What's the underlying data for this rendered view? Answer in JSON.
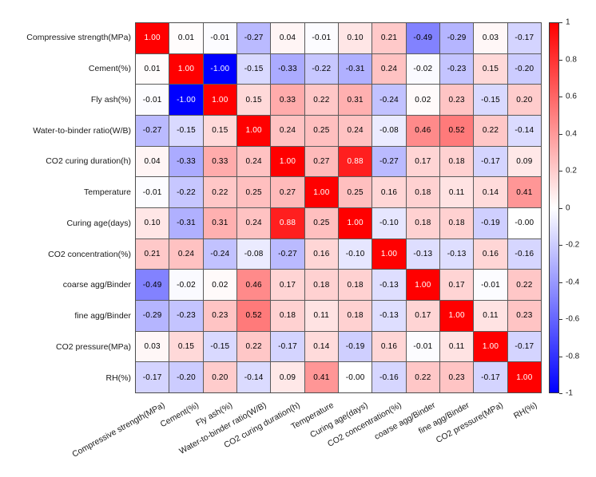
{
  "chart_data": {
    "type": "heatmap",
    "title": "",
    "xlabel": "",
    "ylabel": "",
    "x_categories": [
      "Compressive strength(MPa)",
      "Cement(%)",
      "Fly ash(%)",
      "Water-to-binder ratio(W/B)",
      "CO2 curing duration(h)",
      "Temperature",
      "Curing age(days)",
      "CO2 concentration(%)",
      "coarse agg/Binder",
      "fine agg/Binder",
      "CO2 pressure(MPa)",
      "RH(%)"
    ],
    "y_categories": [
      "Compressive strength(MPa)",
      "Cement(%)",
      "Fly ash(%)",
      "Water-to-binder ratio(W/B)",
      "CO2 curing duration(h)",
      "Temperature",
      "Curing age(days)",
      "CO2 concentration(%)",
      "coarse agg/Binder",
      "fine agg/Binder",
      "CO2 pressure(MPa)",
      "RH(%)"
    ],
    "matrix": [
      [
        "1.00",
        "0.01",
        "-0.01",
        "-0.27",
        "0.04",
        "-0.01",
        "0.10",
        "0.21",
        "-0.49",
        "-0.29",
        "0.03",
        "-0.17"
      ],
      [
        "0.01",
        "1.00",
        "-1.00",
        "-0.15",
        "-0.33",
        "-0.22",
        "-0.31",
        "0.24",
        "-0.02",
        "-0.23",
        "0.15",
        "-0.20"
      ],
      [
        "-0.01",
        "-1.00",
        "1.00",
        "0.15",
        "0.33",
        "0.22",
        "0.31",
        "-0.24",
        "0.02",
        "0.23",
        "-0.15",
        "0.20"
      ],
      [
        "-0.27",
        "-0.15",
        "0.15",
        "1.00",
        "0.24",
        "0.25",
        "0.24",
        "-0.08",
        "0.46",
        "0.52",
        "0.22",
        "-0.14"
      ],
      [
        "0.04",
        "-0.33",
        "0.33",
        "0.24",
        "1.00",
        "0.27",
        "0.88",
        "-0.27",
        "0.17",
        "0.18",
        "-0.17",
        "0.09"
      ],
      [
        "-0.01",
        "-0.22",
        "0.22",
        "0.25",
        "0.27",
        "1.00",
        "0.25",
        "0.16",
        "0.18",
        "0.11",
        "0.14",
        "0.41"
      ],
      [
        "0.10",
        "-0.31",
        "0.31",
        "0.24",
        "0.88",
        "0.25",
        "1.00",
        "-0.10",
        "0.18",
        "0.18",
        "-0.19",
        "-0.00"
      ],
      [
        "0.21",
        "0.24",
        "-0.24",
        "-0.08",
        "-0.27",
        "0.16",
        "-0.10",
        "1.00",
        "-0.13",
        "-0.13",
        "0.16",
        "-0.16"
      ],
      [
        "-0.49",
        "-0.02",
        "0.02",
        "0.46",
        "0.17",
        "0.18",
        "0.18",
        "-0.13",
        "1.00",
        "0.17",
        "-0.01",
        "0.22"
      ],
      [
        "-0.29",
        "-0.23",
        "0.23",
        "0.52",
        "0.18",
        "0.11",
        "0.18",
        "-0.13",
        "0.17",
        "1.00",
        "0.11",
        "0.23"
      ],
      [
        "0.03",
        "0.15",
        "-0.15",
        "0.22",
        "-0.17",
        "0.14",
        "-0.19",
        "0.16",
        "-0.01",
        "0.11",
        "1.00",
        "-0.17"
      ],
      [
        "-0.17",
        "-0.20",
        "0.20",
        "-0.14",
        "0.09",
        "0.41",
        "-0.00",
        "-0.16",
        "0.22",
        "0.23",
        "-0.17",
        "1.00"
      ]
    ],
    "value_range": [
      -1,
      1
    ],
    "colormap": {
      "max_color": "#ff0000",
      "mid_color": "#ffffff",
      "min_color": "#0000ff"
    },
    "colorbar": {
      "position": "right",
      "tick_labels": [
        "1",
        "0.8",
        "0.6",
        "0.4",
        "0.2",
        "0",
        "-0.2",
        "-0.4",
        "-0.6",
        "-0.8",
        "-1"
      ],
      "tick_values": [
        1,
        0.8,
        0.6,
        0.4,
        0.2,
        0,
        -0.2,
        -0.4,
        -0.6,
        -0.8,
        -1
      ]
    },
    "cell_text_color_dark": "#000000",
    "cell_text_color_light": "#ffffff",
    "grid_line_color": "#5a5a5a",
    "legend_position": "right",
    "grid": true
  }
}
